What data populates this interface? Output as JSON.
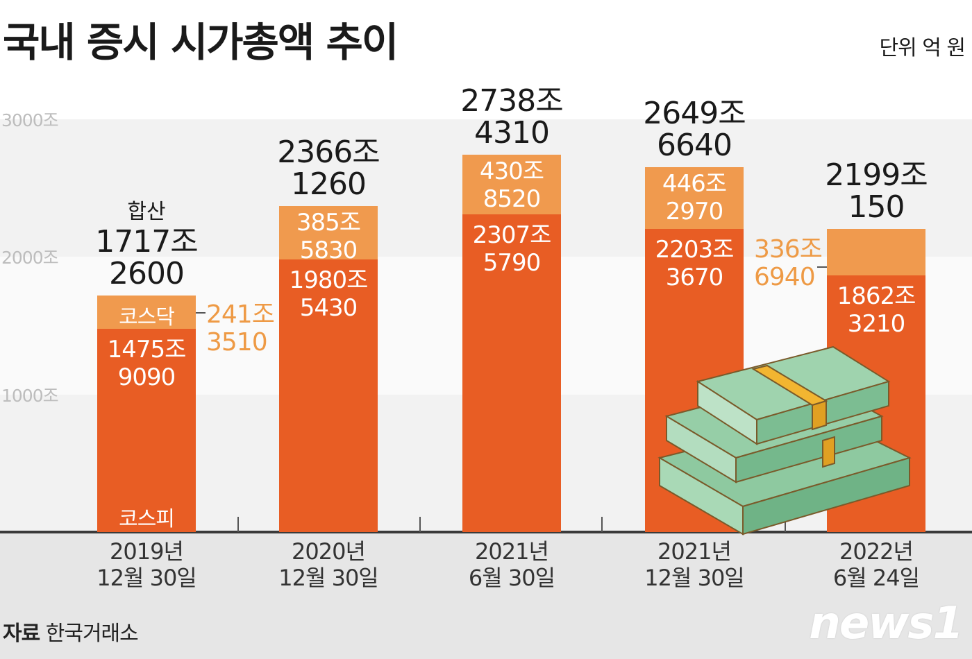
{
  "title": "국내 증시 시가총액 추이",
  "unit_label": "단위 억 원",
  "source_label": "자료",
  "source_name": "한국거래소",
  "logo_text": "news1",
  "colors": {
    "kospi": "#e85d24",
    "kosdaq": "#f09a4e",
    "kosdaq_text": "#ee9a45"
  },
  "chart_data": {
    "type": "bar",
    "stacked": true,
    "yticks": [
      "1000조",
      "2000조",
      "3000조"
    ],
    "ylim": [
      0,
      3000
    ],
    "categories": [
      "2019년\n12월 30일",
      "2020년\n12월 30일",
      "2021년\n6월 30일",
      "2021년\n12월 30일",
      "2022년\n6월 24일"
    ],
    "series": [
      {
        "name": "코스피",
        "values": [
          1475.909,
          1980.543,
          2307.579,
          2203.367,
          1862.321
        ],
        "labels": [
          "1475조\n9090",
          "1980조\n5430",
          "2307조\n5790",
          "2203조\n3670",
          "1862조\n3210"
        ]
      },
      {
        "name": "코스닥",
        "values": [
          241.351,
          385.583,
          430.852,
          446.297,
          336.694
        ],
        "labels": [
          "241조\n3510",
          "385조\n5830",
          "430조\n8520",
          "446조\n2970",
          "336조\n6940"
        ]
      }
    ],
    "totals": [
      1717.26,
      2366.126,
      2738.431,
      2649.664,
      2199.015
    ],
    "total_labels": [
      "1717조\n2600",
      "2366조\n1260",
      "2738조\n4310",
      "2649조\n6640",
      "2199조\n150"
    ],
    "total_prefix": "합산",
    "grid": true,
    "legend": "inline"
  },
  "icons": {
    "money": "banknote-stack-icon"
  }
}
